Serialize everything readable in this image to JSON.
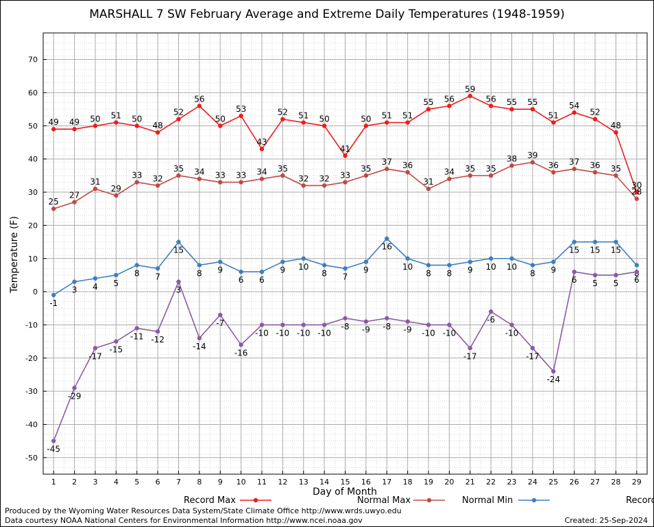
{
  "chart_data": {
    "type": "line",
    "title": "MARSHALL 7 SW February Average and Extreme Daily Temperatures (1948-1959)",
    "xlabel": "Day of Month",
    "ylabel": "Temperature (F)",
    "x": [
      1,
      2,
      3,
      4,
      5,
      6,
      7,
      8,
      9,
      10,
      11,
      12,
      13,
      14,
      15,
      16,
      17,
      18,
      19,
      20,
      21,
      22,
      23,
      24,
      25,
      26,
      27,
      28,
      29
    ],
    "ylim": [
      -55,
      78
    ],
    "yticks": [
      -50,
      -40,
      -30,
      -20,
      -10,
      0,
      10,
      20,
      30,
      40,
      50,
      60,
      70
    ],
    "grid": true,
    "legend_position": "bottom",
    "series": [
      {
        "name": "Record Max",
        "color": "#ee1c1c",
        "values": [
          49,
          49,
          50,
          51,
          50,
          48,
          52,
          56,
          50,
          53,
          43,
          52,
          51,
          50,
          41,
          50,
          51,
          51,
          55,
          56,
          59,
          56,
          55,
          55,
          51,
          54,
          52,
          48,
          30
        ]
      },
      {
        "name": "Normal Max",
        "color": "#c04848",
        "values": [
          25,
          27,
          31,
          29,
          33,
          32,
          35,
          34,
          33,
          33,
          34,
          35,
          32,
          32,
          33,
          35,
          37,
          36,
          31,
          34,
          35,
          35,
          38,
          39,
          36,
          37,
          36,
          35,
          28
        ]
      },
      {
        "name": "Normal Min",
        "color": "#3f7fbf",
        "values": [
          -1,
          3,
          4,
          5,
          8,
          7,
          15,
          8,
          9,
          6,
          6,
          9,
          10,
          8,
          7,
          9,
          16,
          10,
          8,
          8,
          9,
          10,
          10,
          8,
          9,
          15,
          15,
          15,
          8
        ]
      },
      {
        "name": "Record Min",
        "color": "#8a5aa6",
        "values": [
          -45,
          -29,
          -17,
          -15,
          -11,
          -12,
          3,
          -14,
          -7,
          -16,
          -10,
          -10,
          -10,
          -10,
          -8,
          -9,
          -8,
          -9,
          -10,
          -10,
          -17,
          -6,
          -10,
          -17,
          -24,
          6,
          5,
          5,
          6
        ]
      }
    ]
  },
  "footer": {
    "produced_by": "Produced by the Wyoming Water Resources Data System/State Climate Office http://www.wrds.uwyo.edu",
    "courtesy": "Data courtesy NOAA National Centers for Environmental Information http://www.ncei.noaa.gov",
    "created": "Created:  25-Sep-2024"
  }
}
